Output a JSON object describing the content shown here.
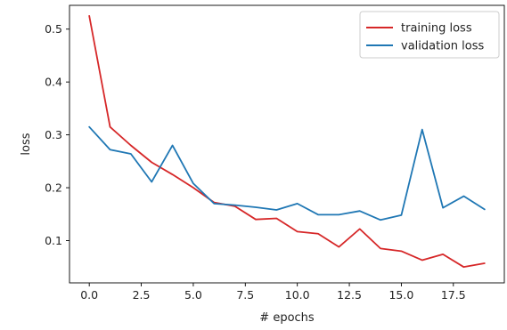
{
  "chart_data": {
    "type": "line",
    "xlabel": "# epochs",
    "ylabel": "loss",
    "xlim": [
      -0.95,
      19.95
    ],
    "ylim": [
      0.02,
      0.545
    ],
    "xticks": [
      0.0,
      2.5,
      5.0,
      7.5,
      10.0,
      12.5,
      15.0,
      17.5
    ],
    "xtick_labels": [
      "0.0",
      "2.5",
      "5.0",
      "7.5",
      "10.0",
      "12.5",
      "15.0",
      "17.5"
    ],
    "yticks": [
      0.1,
      0.2,
      0.3,
      0.4,
      0.5
    ],
    "ytick_labels": [
      "0.1",
      "0.2",
      "0.3",
      "0.4",
      "0.5"
    ],
    "grid": false,
    "legend_position": "upper-right",
    "x": [
      0,
      1,
      2,
      3,
      4,
      5,
      6,
      7,
      8,
      9,
      10,
      11,
      12,
      13,
      14,
      15,
      16,
      17,
      18,
      19
    ],
    "series": [
      {
        "name": "training loss",
        "color": "#d62728",
        "values": [
          0.525,
          0.315,
          0.28,
          0.248,
          0.225,
          0.2,
          0.172,
          0.165,
          0.14,
          0.142,
          0.117,
          0.113,
          0.088,
          0.122,
          0.085,
          0.08,
          0.063,
          0.074,
          0.05,
          0.057
        ]
      },
      {
        "name": "validation loss",
        "color": "#1f77b4",
        "values": [
          0.315,
          0.272,
          0.264,
          0.211,
          0.28,
          0.208,
          0.17,
          0.167,
          0.163,
          0.158,
          0.17,
          0.149,
          0.149,
          0.156,
          0.139,
          0.148,
          0.31,
          0.162,
          0.184,
          0.159
        ]
      }
    ]
  }
}
